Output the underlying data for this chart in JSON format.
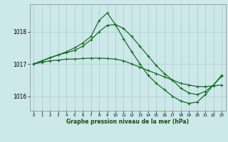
{
  "title": "Graphe pression niveau de la mer (hPa)",
  "background_color": "#cce8e8",
  "grid_color": "#aacccc",
  "line_color": "#1a6b2a",
  "ylim": [
    1015.55,
    1018.85
  ],
  "yticks": [
    1016,
    1017,
    1018
  ],
  "xticks": [
    0,
    1,
    2,
    3,
    4,
    5,
    6,
    7,
    8,
    9,
    10,
    11,
    12,
    13,
    14,
    15,
    16,
    17,
    18,
    19,
    20,
    21,
    22,
    23
  ],
  "line1_x": [
    0,
    1,
    2,
    3,
    4,
    5,
    6,
    7,
    8,
    9,
    10,
    11,
    12,
    13,
    14,
    15,
    16,
    17,
    18,
    19,
    20,
    21,
    22,
    23
  ],
  "line1_y": [
    1017.0,
    1017.05,
    1017.1,
    1017.12,
    1017.15,
    1017.15,
    1017.17,
    1017.18,
    1017.18,
    1017.17,
    1017.15,
    1017.1,
    1017.0,
    1016.9,
    1016.8,
    1016.7,
    1016.6,
    1016.5,
    1016.4,
    1016.35,
    1016.3,
    1016.3,
    1016.32,
    1016.35
  ],
  "line2_x": [
    0,
    1,
    2,
    3,
    4,
    5,
    6,
    7,
    8,
    9,
    10,
    11,
    12,
    13,
    14,
    15,
    16,
    17,
    18,
    19,
    20,
    21,
    22,
    23
  ],
  "line2_y": [
    1017.0,
    1017.1,
    1017.2,
    1017.28,
    1017.35,
    1017.42,
    1017.55,
    1017.75,
    1018.0,
    1018.2,
    1018.22,
    1018.1,
    1017.85,
    1017.55,
    1017.25,
    1016.95,
    1016.7,
    1016.5,
    1016.25,
    1016.1,
    1016.05,
    1016.15,
    1016.35,
    1016.65
  ],
  "line3_x": [
    0,
    3,
    4,
    5,
    6,
    7,
    8,
    9,
    10,
    11,
    12,
    13,
    14,
    15,
    16,
    17,
    18,
    19,
    20,
    21,
    22,
    23
  ],
  "line3_y": [
    1017.0,
    1017.28,
    1017.38,
    1017.5,
    1017.65,
    1017.85,
    1018.35,
    1018.58,
    1018.22,
    1017.78,
    1017.38,
    1017.0,
    1016.65,
    1016.4,
    1016.2,
    1016.0,
    1015.85,
    1015.78,
    1015.82,
    1016.05,
    1016.35,
    1016.62
  ]
}
